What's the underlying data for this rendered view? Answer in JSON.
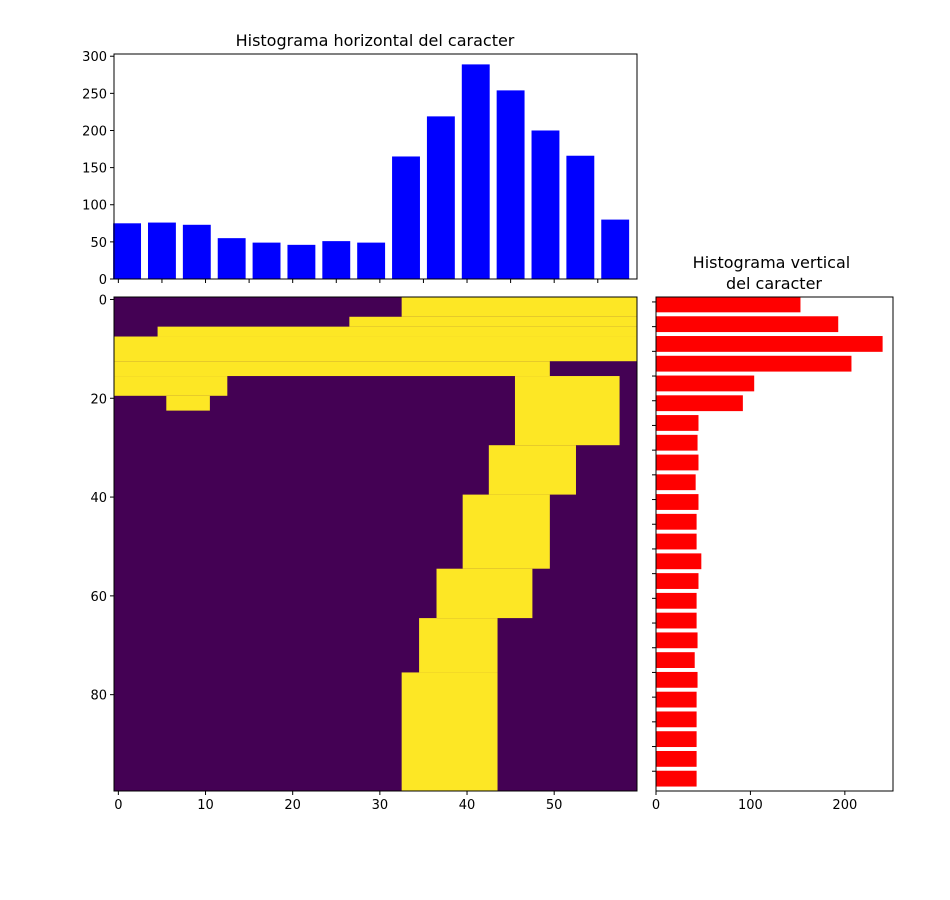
{
  "chart_data": [
    {
      "type": "bar",
      "title": "Histograma horizontal del caracter",
      "orientation": "vertical",
      "color": "#0000ff",
      "categories": [
        1,
        5,
        9,
        13,
        17,
        21,
        25,
        29,
        33,
        37,
        41,
        45,
        49,
        53,
        57
      ],
      "values": [
        75,
        76,
        73,
        55,
        49,
        46,
        51,
        49,
        165,
        219,
        289,
        254,
        200,
        166,
        80
      ],
      "xlim": [
        -0.5,
        59.5
      ],
      "ylim": [
        0,
        303
      ],
      "yticks": [
        0,
        50,
        100,
        150,
        200,
        250,
        300
      ],
      "xlabel": "",
      "ylabel": ""
    },
    {
      "type": "heatmap",
      "colormap": "viridis",
      "colors": {
        "background": "#440154",
        "foreground": "#fde725"
      },
      "width": 60,
      "height": 100,
      "xticks": [
        0,
        10,
        20,
        30,
        40,
        50
      ],
      "yticks": [
        0,
        20,
        40,
        60,
        80
      ],
      "stroke_rows": [
        {
          "y": [
            0,
            4
          ],
          "x": [
            33,
            59
          ]
        },
        {
          "y": [
            4,
            6
          ],
          "x": [
            27,
            59
          ]
        },
        {
          "y": [
            6,
            8
          ],
          "x": [
            5,
            59
          ]
        },
        {
          "y": [
            8,
            13
          ],
          "x": [
            0,
            59
          ]
        },
        {
          "y": [
            13,
            16
          ],
          "x": [
            0,
            49
          ]
        },
        {
          "y": [
            16,
            20
          ],
          "x": [
            0,
            12
          ]
        },
        {
          "y": [
            20,
            23
          ],
          "x": [
            6,
            10
          ]
        },
        {
          "y": [
            16,
            30
          ],
          "x": [
            46,
            57
          ]
        },
        {
          "y": [
            30,
            40
          ],
          "x": [
            43,
            52
          ]
        },
        {
          "y": [
            40,
            55
          ],
          "x": [
            40,
            49
          ]
        },
        {
          "y": [
            55,
            65
          ],
          "x": [
            37,
            47
          ]
        },
        {
          "y": [
            65,
            76
          ],
          "x": [
            35,
            43
          ]
        },
        {
          "y": [
            76,
            100
          ],
          "x": [
            33,
            43
          ]
        }
      ]
    },
    {
      "type": "bar",
      "title": "Histograma vertical\ndel caracter",
      "orientation": "horizontal",
      "color": "#ff0000",
      "categories": [
        1,
        5,
        9,
        13,
        17,
        21,
        25,
        29,
        33,
        37,
        41,
        45,
        49,
        53,
        57,
        61,
        65,
        69,
        73,
        77,
        81,
        85,
        89,
        93,
        97
      ],
      "values": [
        153,
        193,
        240,
        207,
        104,
        92,
        45,
        44,
        45,
        42,
        45,
        43,
        43,
        48,
        45,
        43,
        43,
        44,
        41,
        44,
        43,
        43,
        43,
        43,
        43
      ],
      "xlim": [
        0,
        251
      ],
      "ylim": [
        99.5,
        -0.5
      ],
      "xticks": [
        0,
        100,
        200
      ],
      "xlabel": "",
      "ylabel": ""
    }
  ]
}
